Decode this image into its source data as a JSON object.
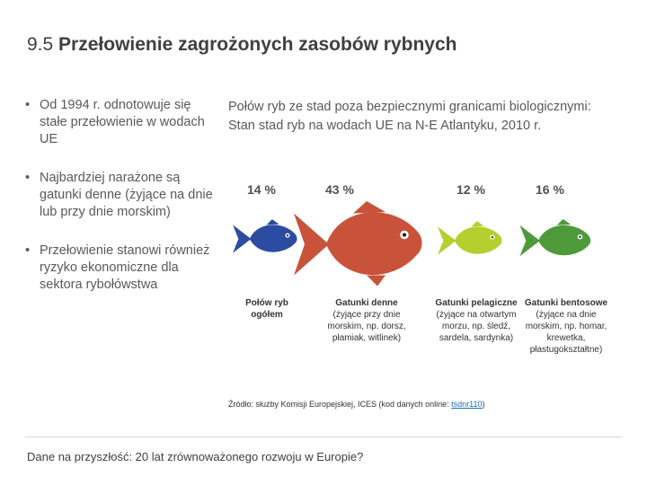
{
  "slide": {
    "number": "9.5",
    "title": "Przełowienie zagrożonych zasobów rybnych"
  },
  "bullets": [
    "Od 1994 r. odnotowuje się stałe przełowienie w wodach UE",
    "Najbardziej narażone są gatunki denne (żyjące na dnie lub przy dnie morskim)",
    "Przełowienie stanowi również ryzyko ekonomiczne dla sektora rybołówstwa"
  ],
  "infographic": {
    "title_line1": "Połów ryb ze stad poza bezpiecznymi granicami biologicznymi:",
    "title_line2": "Stan stad ryb na wodach UE na N-E Atlantyku, 2010 r.",
    "groups": [
      {
        "percent": "14 %",
        "label": "Połów ryb ogółem",
        "desc": "",
        "color": "#2b4ca0"
      },
      {
        "percent": "43 %",
        "label": "Gatunki denne",
        "desc": "(żyjące przy dnie morskim, np. dorsz, płamiak, witlinek)",
        "color": "#c8533a"
      },
      {
        "percent": "12 %",
        "label": "Gatunki pelagiczne",
        "desc": "(żyjące na otwartym morzu, np. śledź, sardela, sardynka)",
        "color": "#b5cf2e"
      },
      {
        "percent": "16 %",
        "label": "Gatunki bentosowe",
        "desc": "(żyjące na dnie morskim, np. homar, krewetka, płastugokształtne)",
        "color": "#4e9a3a"
      }
    ],
    "source_prefix": "Źródło: służby Komisji Europejskiej, ICES (kod danych online: ",
    "source_link": "tsdnr110",
    "source_suffix": ")"
  },
  "footer": {
    "text": "Dane na przyszłość: 20 lat zrównoważonego rozwoju w Europie?"
  }
}
